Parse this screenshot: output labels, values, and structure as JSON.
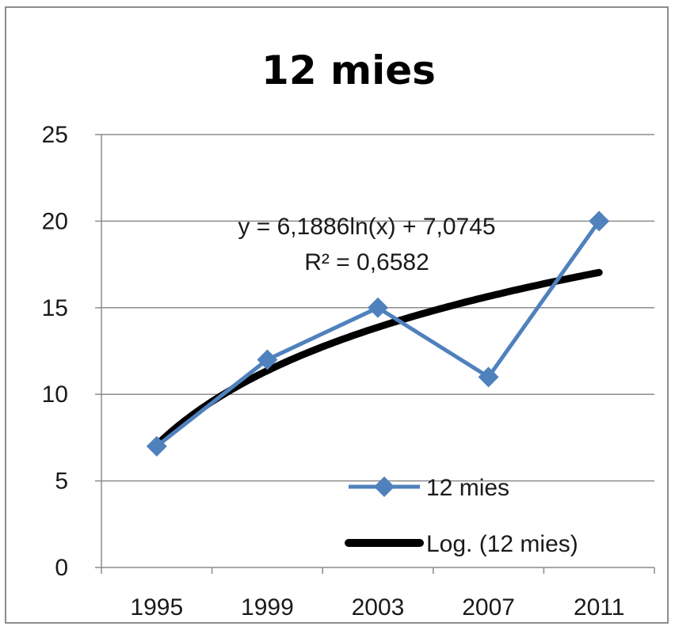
{
  "chart_data": {
    "type": "line",
    "title": "12 mies",
    "categories": [
      "1995",
      "1999",
      "2003",
      "2007",
      "2011"
    ],
    "series": [
      {
        "name": "12 mies",
        "values": [
          7,
          12,
          15,
          11,
          20
        ],
        "color": "#4f81bd",
        "marker": "diamond"
      }
    ],
    "trendline": {
      "name": "Log. (12 mies)",
      "type": "logarithmic",
      "a": 6.1886,
      "b": 7.0745,
      "color": "#000000"
    },
    "annotation": {
      "equation": "y = 6,1886ln(x) + 7,0745",
      "r_squared": "R² = 0,6582"
    },
    "ylim": [
      0,
      25
    ],
    "y_ticks": [
      "0",
      "5",
      "10",
      "15",
      "20",
      "25"
    ],
    "grid": true,
    "legend_position": "bottom-right"
  }
}
